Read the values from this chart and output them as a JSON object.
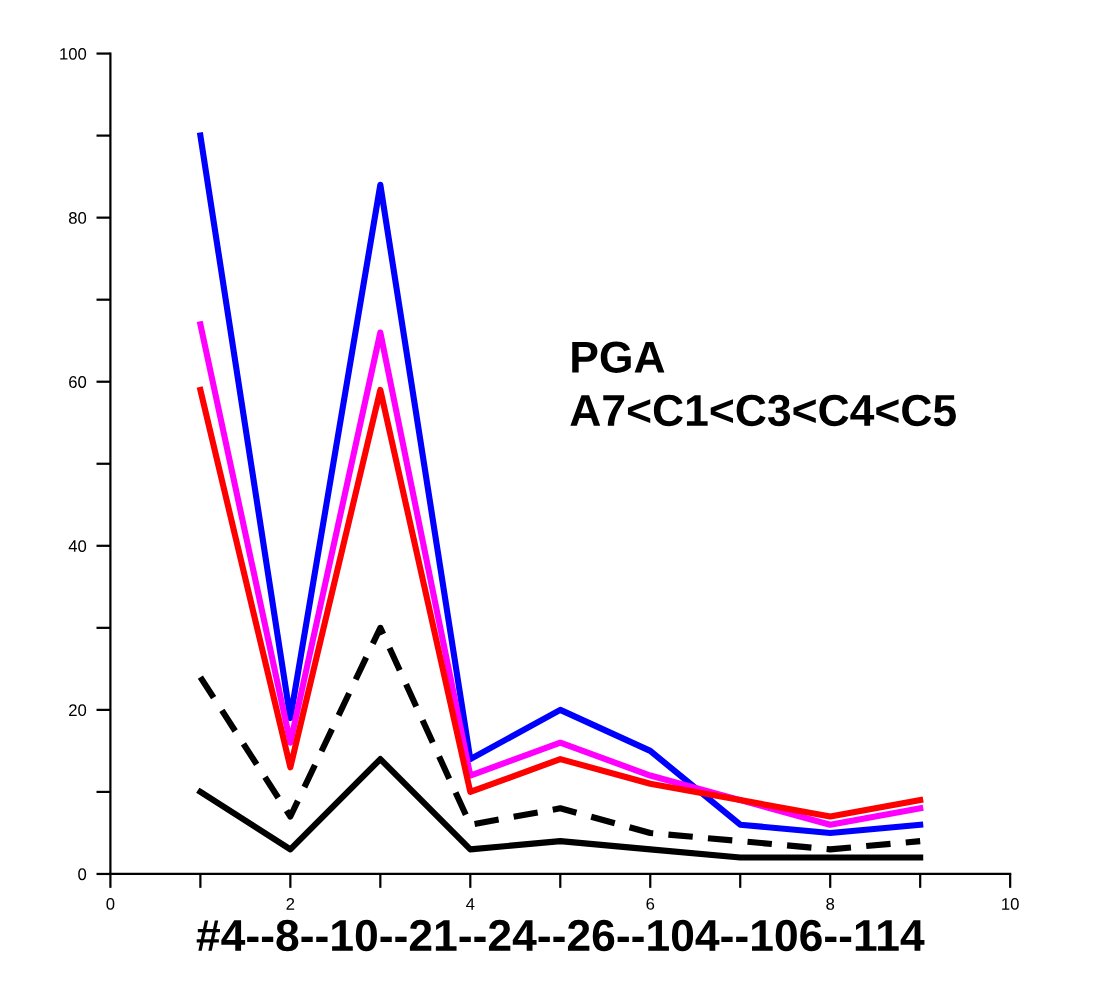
{
  "chart_data": {
    "type": "line",
    "xlabel": "#4--8--10--21--24--26--104--106--114",
    "x": [
      1,
      2,
      3,
      4,
      5,
      6,
      7,
      8,
      9
    ],
    "series": [
      {
        "color": "#0000ff",
        "values": [
          90,
          19,
          84,
          14,
          20,
          15,
          6,
          5,
          6
        ]
      },
      {
        "color": "#ff00ff",
        "values": [
          67,
          16,
          66,
          12,
          16,
          12,
          9,
          6,
          8
        ]
      },
      {
        "color": "#ff0000",
        "values": [
          59,
          13,
          59,
          10,
          14,
          11,
          9,
          7,
          9
        ]
      },
      {
        "color": "#000000",
        "values": [
          24,
          7,
          30,
          6,
          8,
          5,
          4,
          3,
          4
        ],
        "line_style": "dashed"
      },
      {
        "color": "#000000",
        "values": [
          10,
          3,
          14,
          3,
          4,
          3,
          2,
          2,
          2
        ]
      }
    ],
    "annotations": [
      "PGA",
      "A7<C1<C3<C4<C5"
    ],
    "xlim": [
      0,
      10
    ],
    "ylim": [
      0,
      100
    ],
    "xticks": [
      0,
      {
        "value": 1,
        "label": null
      },
      2,
      {
        "value": 3,
        "label": null
      },
      4,
      {
        "value": 5,
        "label": null
      },
      6,
      {
        "value": 7,
        "label": null
      },
      8,
      {
        "value": 9,
        "label": null
      },
      10
    ],
    "yticks": [
      0,
      {
        "value": 10,
        "label": null
      },
      20,
      {
        "value": 30,
        "label": null
      },
      40,
      {
        "value": 50,
        "label": null
      },
      60,
      {
        "value": 70,
        "label": null
      },
      80,
      {
        "value": 90,
        "label": null
      },
      100
    ],
    "grid": false,
    "legend": false
  }
}
